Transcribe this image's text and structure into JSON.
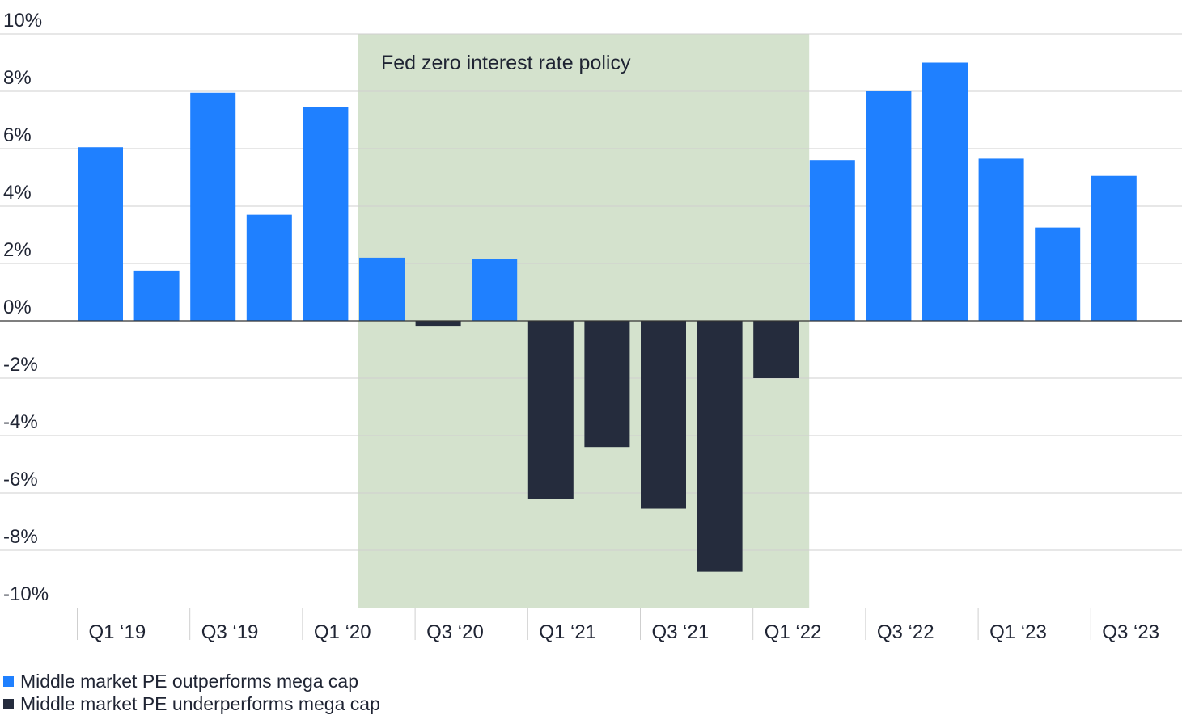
{
  "colors": {
    "positive": "#1f80ff",
    "negative": "#252c3d",
    "shade": "#d4e2cd",
    "grid": "#cfcfcf",
    "axis": "#333333",
    "text": "#1f2433"
  },
  "chart_data": {
    "type": "bar",
    "categories": [
      "Q1 '19",
      "Q2 '19",
      "Q3 '19",
      "Q4 '19",
      "Q1 '20",
      "Q2 '20",
      "Q3 '20",
      "Q4 '20",
      "Q1 '21",
      "Q2 '21",
      "Q3 '21",
      "Q4 '21",
      "Q1 '22",
      "Q2 '22",
      "Q3 '22",
      "Q4 '22",
      "Q1 '23",
      "Q2 '23",
      "Q3 '23"
    ],
    "values": [
      6.05,
      1.75,
      7.95,
      3.7,
      7.45,
      2.2,
      -0.2,
      2.15,
      -6.2,
      -4.4,
      -6.55,
      -8.75,
      -2.0,
      5.6,
      8.0,
      9.0,
      5.65,
      3.25,
      5.05
    ],
    "xtick_labels": [
      "Q1 ‘19",
      "Q3 ‘19",
      "Q1 ‘20",
      "Q3 ‘20",
      "Q1 ‘21",
      "Q3 ‘21",
      "Q1 ‘22",
      "Q3 ‘22",
      "Q1 ‘23",
      "Q3 ‘23"
    ],
    "xtick_indices": [
      0,
      2,
      4,
      6,
      8,
      10,
      12,
      14,
      16,
      18
    ],
    "ylim": [
      -10,
      10
    ],
    "yticks": [
      10,
      8,
      6,
      4,
      2,
      0,
      -2,
      -4,
      -6,
      -8,
      -10
    ],
    "ytick_labels": [
      "10%",
      "8%",
      "6%",
      "4%",
      "2%",
      "0%",
      "-2%",
      "-4%",
      "-6%",
      "-8%",
      "-10%"
    ],
    "grid": true,
    "annotation": {
      "text": "Fed zero interest rate policy",
      "start_index": 5,
      "end_index": 12
    },
    "legend": {
      "placement": "bottom-left",
      "items": [
        {
          "label": "Middle market PE outperforms mega cap",
          "color_key": "positive"
        },
        {
          "label": "Middle market PE underperforms mega cap",
          "color_key": "negative"
        }
      ]
    }
  }
}
